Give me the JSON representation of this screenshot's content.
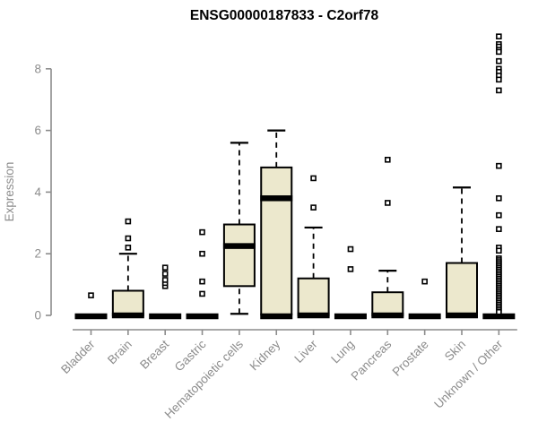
{
  "chart_data": {
    "type": "boxplot",
    "title": "ENSG00000187833 - C2orf78",
    "ylabel": "Expression",
    "xlabel": "",
    "yticks": [
      0,
      2,
      4,
      6,
      8
    ],
    "ylim": [
      0,
      9.3
    ],
    "grid": false,
    "legend": "none",
    "colors": {
      "box_fill": "#ece8cd",
      "box_stroke": "#000000",
      "median": "#000000",
      "axis": "#8c8c8c",
      "tick_label": "#8c8c8c",
      "title": "#000000",
      "background": "#ffffff"
    },
    "categories": [
      "Bladder",
      "Brain",
      "Breast",
      "Gastric",
      "Hematopoietic cells",
      "Kidney",
      "Liver",
      "Lung",
      "Pancreas",
      "Prostate",
      "Skin",
      "Unknown / Other"
    ],
    "boxes": [
      {
        "category": "Bladder",
        "q1": 0,
        "median": 0,
        "q3": 0,
        "whisker_low": 0,
        "whisker_high": 0,
        "flat": true,
        "zero_bar": true,
        "outliers": [
          0.65
        ]
      },
      {
        "category": "Brain",
        "q1": 0,
        "median": 0,
        "q3": 0.8,
        "whisker_low": 0,
        "whisker_high": 2.0,
        "flat": false,
        "zero_bar": false,
        "outliers": [
          2.2,
          2.5,
          3.05
        ]
      },
      {
        "category": "Breast",
        "q1": 0,
        "median": 0,
        "q3": 0,
        "whisker_low": 0,
        "whisker_high": 0,
        "flat": true,
        "zero_bar": true,
        "outliers": [
          0.95,
          1.05,
          1.15,
          1.35,
          1.55
        ]
      },
      {
        "category": "Gastric",
        "q1": 0,
        "median": 0,
        "q3": 0,
        "whisker_low": 0,
        "whisker_high": 0,
        "flat": true,
        "zero_bar": true,
        "outliers": [
          0.7,
          1.1,
          2.0,
          2.7
        ]
      },
      {
        "category": "Hematopoietic cells",
        "q1": 0.95,
        "median": 2.25,
        "q3": 2.95,
        "whisker_low": 0.05,
        "whisker_high": 5.6,
        "flat": false,
        "zero_bar": false,
        "outliers": []
      },
      {
        "category": "Kidney",
        "q1": 0.03,
        "median": 3.8,
        "q3": 4.8,
        "whisker_low": 0.03,
        "whisker_high": 6.0,
        "flat": false,
        "zero_bar": true,
        "outliers": []
      },
      {
        "category": "Liver",
        "q1": 0,
        "median": 0,
        "q3": 1.2,
        "whisker_low": 0,
        "whisker_high": 2.85,
        "flat": false,
        "zero_bar": false,
        "outliers": [
          3.5,
          4.45
        ]
      },
      {
        "category": "Lung",
        "q1": 0,
        "median": 0,
        "q3": 0,
        "whisker_low": 0,
        "whisker_high": 0,
        "flat": true,
        "zero_bar": true,
        "outliers": [
          1.5,
          2.15
        ]
      },
      {
        "category": "Pancreas",
        "q1": 0,
        "median": 0,
        "q3": 0.75,
        "whisker_low": 0,
        "whisker_high": 1.45,
        "flat": false,
        "zero_bar": false,
        "outliers": [
          3.65,
          5.05
        ]
      },
      {
        "category": "Prostate",
        "q1": 0,
        "median": 0,
        "q3": 0,
        "whisker_low": 0,
        "whisker_high": 0,
        "flat": true,
        "zero_bar": true,
        "outliers": [
          1.1
        ]
      },
      {
        "category": "Skin",
        "q1": 0,
        "median": 0,
        "q3": 1.7,
        "whisker_low": 0,
        "whisker_high": 4.15,
        "flat": false,
        "zero_bar": false,
        "outliers": []
      },
      {
        "category": "Unknown / Other",
        "q1": 0,
        "median": 0,
        "q3": 0,
        "whisker_low": 0,
        "whisker_high": 0,
        "flat": true,
        "zero_bar": true,
        "outliers": [
          9.05,
          8.8,
          8.72,
          8.62,
          8.55,
          8.25,
          8.0,
          7.9,
          7.78,
          7.65,
          7.3,
          4.85,
          3.8,
          3.25,
          2.8,
          2.2,
          2.1,
          1.85,
          1.79,
          1.73,
          1.67,
          1.61,
          1.55,
          1.49,
          1.43,
          1.37,
          1.31,
          1.25,
          1.19,
          1.13,
          1.07,
          1.01,
          0.95,
          0.89,
          0.83,
          0.77,
          0.71,
          0.65,
          0.59,
          0.53,
          0.47,
          0.41,
          0.35,
          0.29,
          0.23,
          0.17,
          0.11
        ]
      }
    ]
  }
}
